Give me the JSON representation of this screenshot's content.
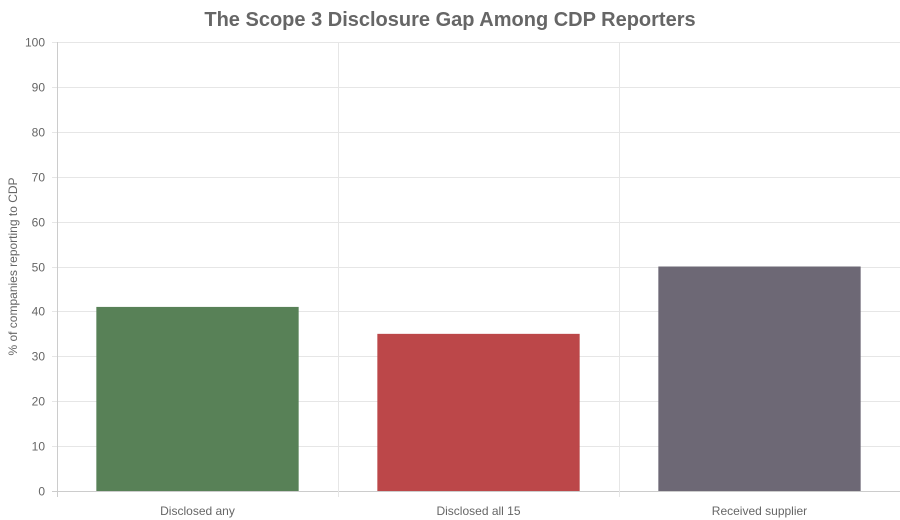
{
  "chart_data": {
    "type": "bar",
    "title": "The Scope 3 Disclosure Gap Among CDP Reporters",
    "xlabel": "",
    "ylabel": "% of companies reporting to CDP",
    "categories": [
      "Disclosed any",
      "Disclosed all 15",
      "Received supplier"
    ],
    "values": [
      41,
      35,
      50
    ],
    "colors": [
      "#588157",
      "#bc4749",
      "#6d6875"
    ],
    "ylim": [
      0,
      100
    ],
    "yticks": [
      0,
      10,
      20,
      30,
      40,
      50,
      60,
      70,
      80,
      90,
      100
    ],
    "grid": true,
    "legend": "none"
  }
}
